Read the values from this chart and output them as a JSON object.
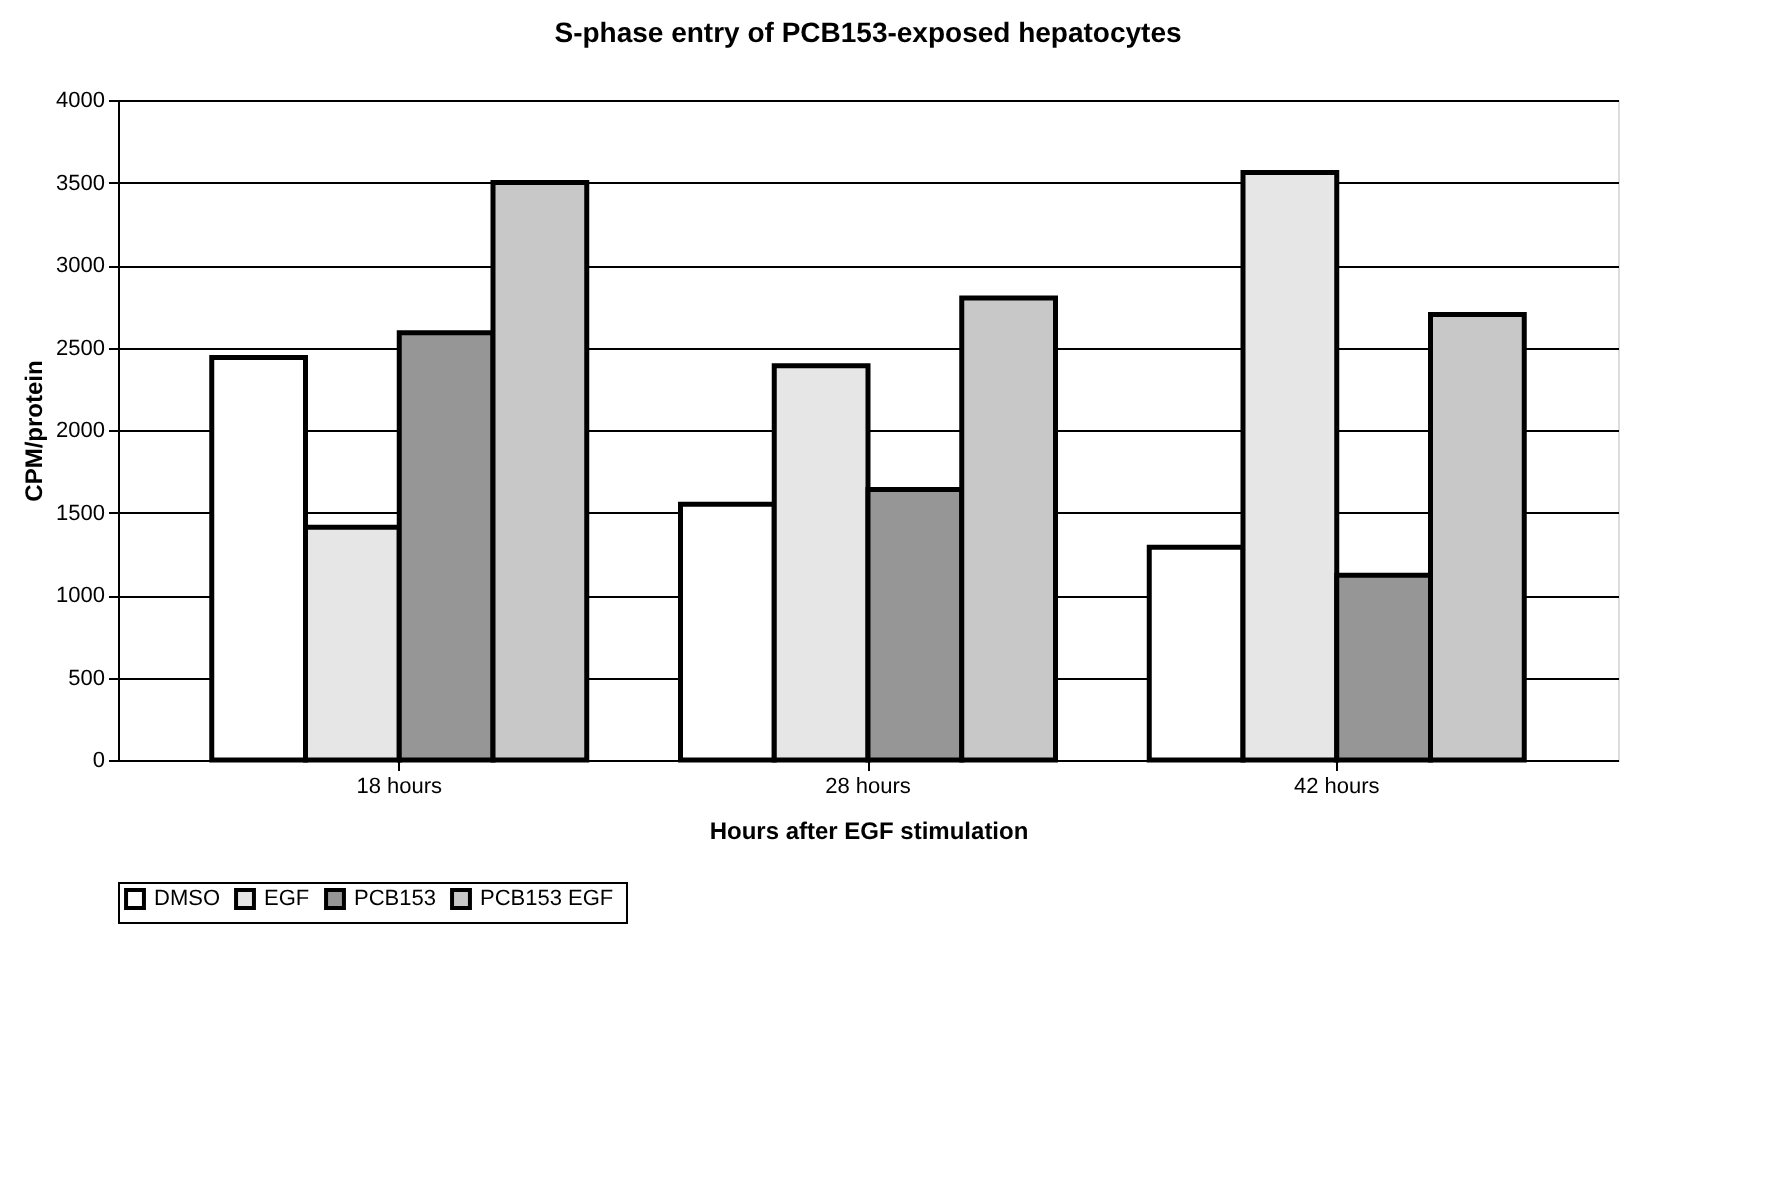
{
  "chart_data": {
    "type": "bar",
    "title": "S-phase entry of PCB153-exposed hepatocytes",
    "xlabel": "Hours after EGF stimulation",
    "ylabel": "CPM/protein",
    "categories": [
      "18 hours",
      "28 hours",
      "42 hours"
    ],
    "series": [
      {
        "name": "DMSO",
        "color": "#ffffff",
        "values": [
          2440,
          1550,
          1290
        ]
      },
      {
        "name": "EGF",
        "color": "#e6e6e6",
        "values": [
          1410,
          2390,
          3560
        ]
      },
      {
        "name": "PCB153",
        "color": "#969696",
        "values": [
          2590,
          1640,
          1120
        ]
      },
      {
        "name": "PCB153  EGF",
        "color": "#c8c8c8",
        "values": [
          3500,
          2800,
          2700
        ]
      }
    ],
    "ylim": [
      0,
      4000
    ],
    "yticks": [
      0,
      500,
      1000,
      1500,
      2000,
      2500,
      3000,
      3500,
      4000
    ],
    "grid": "y",
    "legend": "bottom"
  }
}
